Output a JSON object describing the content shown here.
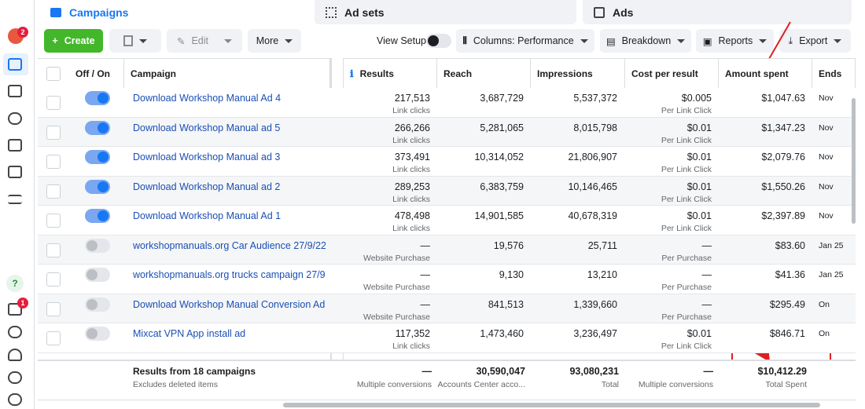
{
  "sidebar": {
    "badges": [
      "2",
      "1"
    ]
  },
  "tabs": [
    "Campaigns",
    "Ad sets",
    "Ads"
  ],
  "toolbar": {
    "create": "Create",
    "edit": "Edit",
    "more": "More",
    "view_setup": "View Setup",
    "columns": "Columns: Performance",
    "breakdown": "Breakdown",
    "reports": "Reports",
    "export": "Export"
  },
  "table": {
    "headers": [
      "Off / On",
      "Campaign",
      "Results",
      "Reach",
      "Impressions",
      "Cost per result",
      "Amount spent",
      "Ends"
    ],
    "rows": [
      {
        "on": true,
        "campaign": "Download Workshop Manual Ad 4",
        "results": "217,513",
        "results_note": "Link clicks",
        "reach": "3,687,729",
        "impressions": "5,537,372",
        "cost": "$0.005",
        "cost_note": "Per Link Click",
        "amount": "$1,047.63",
        "ends": "Nov"
      },
      {
        "on": true,
        "campaign": "Download Workshop Manual ad 5",
        "results": "266,266",
        "results_note": "Link clicks",
        "reach": "5,281,065",
        "impressions": "8,015,798",
        "cost": "$0.01",
        "cost_note": "Per Link Click",
        "amount": "$1,347.23",
        "ends": "Nov"
      },
      {
        "on": true,
        "campaign": "Download Workshop Manual ad 3",
        "results": "373,491",
        "results_note": "Link clicks",
        "reach": "10,314,052",
        "impressions": "21,806,907",
        "cost": "$0.01",
        "cost_note": "Per Link Click",
        "amount": "$2,079.76",
        "ends": "Nov"
      },
      {
        "on": true,
        "campaign": "Download Workshop Manual ad 2",
        "results": "289,253",
        "results_note": "Link clicks",
        "reach": "6,383,759",
        "impressions": "10,146,465",
        "cost": "$0.01",
        "cost_note": "Per Link Click",
        "amount": "$1,550.26",
        "ends": "Nov"
      },
      {
        "on": true,
        "campaign": "Download Workshop Manual Ad 1",
        "results": "478,498",
        "results_note": "Link clicks",
        "reach": "14,901,585",
        "impressions": "40,678,319",
        "cost": "$0.01",
        "cost_note": "Per Link Click",
        "amount": "$2,397.89",
        "ends": "Nov"
      },
      {
        "on": false,
        "campaign": "workshopmanuals.org Car Audience 27/9/22",
        "results": "—",
        "results_note": "Website Purchase",
        "reach": "19,576",
        "impressions": "25,711",
        "cost": "—",
        "cost_note": "Per Purchase",
        "amount": "$83.60",
        "ends": "Jan 25"
      },
      {
        "on": false,
        "campaign": "workshopmanuals.org trucks campaign 27/9...",
        "results": "—",
        "results_note": "Website Purchase",
        "reach": "9,130",
        "impressions": "13,210",
        "cost": "—",
        "cost_note": "Per Purchase",
        "amount": "$41.36",
        "ends": "Jan 25"
      },
      {
        "on": false,
        "campaign": "Download Workshop Manual Conversion Ad",
        "results": "—",
        "results_note": "Website Purchase",
        "reach": "841,513",
        "impressions": "1,339,660",
        "cost": "—",
        "cost_note": "Per Purchase",
        "amount": "$295.49",
        "ends": "On"
      },
      {
        "on": false,
        "campaign": "Mixcat VPN App install ad",
        "results": "117,352",
        "results_note": "Link clicks",
        "reach": "1,473,460",
        "impressions": "3,236,497",
        "cost": "$0.01",
        "cost_note": "Per Link Click",
        "amount": "$846.71",
        "ends": "On"
      }
    ],
    "footer": {
      "title": "Results from 18 campaigns",
      "note": "Excludes deleted items",
      "results": "—",
      "results_note": "Multiple conversions",
      "reach": "30,590,047",
      "reach_note": "Accounts Center acco...",
      "impressions": "93,080,231",
      "impressions_note": "Total",
      "cost": "—",
      "cost_note": "Multiple conversions",
      "amount": "$10,412.29",
      "amount_note": "Total Spent"
    }
  }
}
